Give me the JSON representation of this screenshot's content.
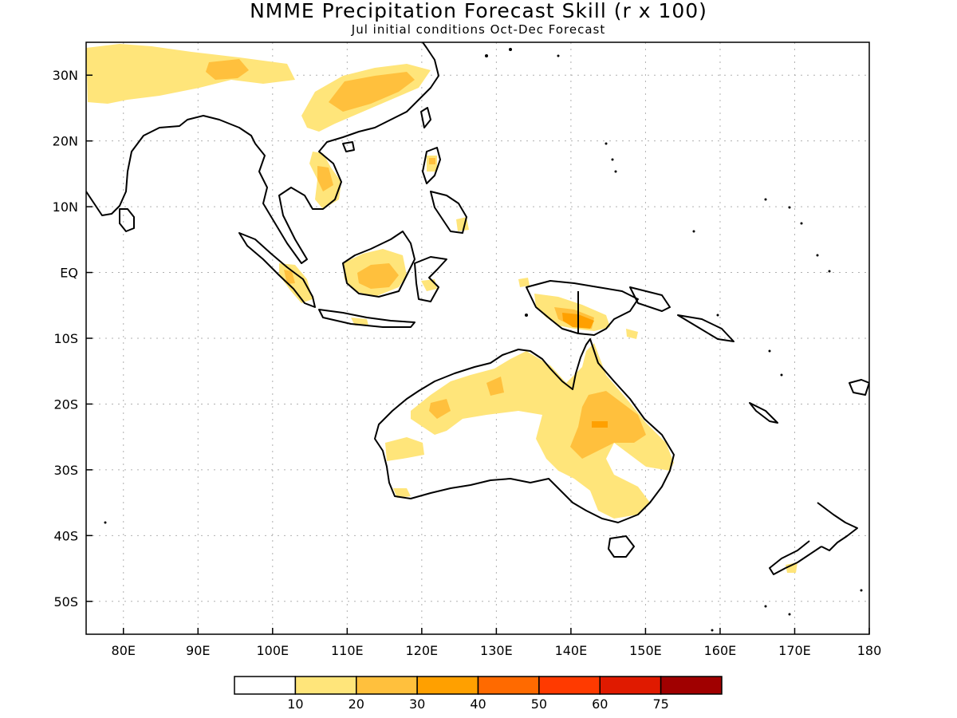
{
  "title": "NMME Precipitation Forecast Skill (r x 100)",
  "subtitle": "Jul initial conditions  Oct-Dec Forecast",
  "map": {
    "lon_range": [
      75,
      180
    ],
    "lat_range": [
      -55,
      35
    ],
    "lat_ticks": [
      {
        "lat": 30,
        "label": "30N"
      },
      {
        "lat": 20,
        "label": "20N"
      },
      {
        "lat": 10,
        "label": "10N"
      },
      {
        "lat": 0,
        "label": "EQ"
      },
      {
        "lat": -10,
        "label": "10S"
      },
      {
        "lat": -20,
        "label": "20S"
      },
      {
        "lat": -30,
        "label": "30S"
      },
      {
        "lat": -40,
        "label": "40S"
      },
      {
        "lat": -50,
        "label": "50S"
      }
    ],
    "lon_ticks": [
      {
        "lon": 80,
        "label": "80E"
      },
      {
        "lon": 90,
        "label": "90E"
      },
      {
        "lon": 100,
        "label": "100E"
      },
      {
        "lon": 110,
        "label": "110E"
      },
      {
        "lon": 120,
        "label": "120E"
      },
      {
        "lon": 130,
        "label": "130E"
      },
      {
        "lon": 140,
        "label": "140E"
      },
      {
        "lon": 150,
        "label": "150E"
      },
      {
        "lon": 160,
        "label": "160E"
      },
      {
        "lon": 170,
        "label": "170E"
      },
      {
        "lon": 180,
        "label": "180"
      }
    ],
    "grid": true,
    "coastline_color": "#000000"
  },
  "colorbar": {
    "bins": [
      {
        "color": "#ffffff"
      },
      {
        "color": "#ffe57a"
      },
      {
        "color": "#ffc03d"
      },
      {
        "color": "#ffa000"
      },
      {
        "color": "#ff6a00"
      },
      {
        "color": "#ff3a00"
      },
      {
        "color": "#e01a00"
      },
      {
        "color": "#a00000"
      }
    ],
    "labels": [
      "10",
      "20",
      "30",
      "40",
      "50",
      "60",
      "75"
    ]
  }
}
